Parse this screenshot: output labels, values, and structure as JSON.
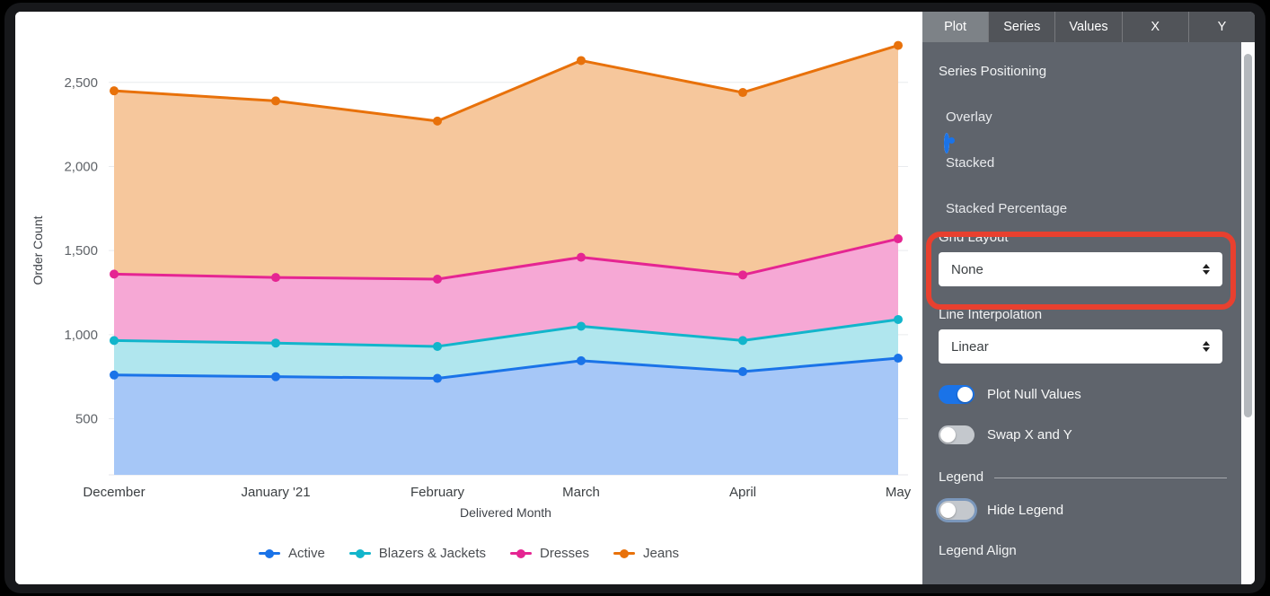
{
  "panel": {
    "tabs": [
      {
        "label": "Plot",
        "active": true
      },
      {
        "label": "Series",
        "active": false
      },
      {
        "label": "Values",
        "active": false
      },
      {
        "label": "X",
        "active": false
      },
      {
        "label": "Y",
        "active": false
      }
    ],
    "series_positioning": {
      "label": "Series Positioning",
      "options": [
        {
          "label": "Overlay",
          "selected": false
        },
        {
          "label": "Stacked",
          "selected": true
        },
        {
          "label": "Stacked Percentage",
          "selected": false
        }
      ]
    },
    "grid_layout": {
      "label": "Grid Layout",
      "value": "None"
    },
    "line_interpolation": {
      "label": "Line Interpolation",
      "value": "Linear"
    },
    "toggles": [
      {
        "label": "Plot Null Values",
        "on": true
      },
      {
        "label": "Swap X and Y",
        "on": false
      }
    ],
    "legend_section": {
      "header": "Legend",
      "hide_legend": {
        "label": "Hide Legend",
        "on": false
      },
      "legend_align_label": "Legend Align"
    }
  },
  "annotation": {
    "type": "highlight-box",
    "target": "Grid Layout",
    "color": "#e8402f"
  },
  "colors": {
    "accent_blue": "#1a73e8",
    "panel_background": "#5f646c",
    "annotation_red": "#e8402f"
  },
  "chart_data": {
    "type": "area",
    "stacked": true,
    "title": "",
    "xlabel": "Delivered Month",
    "ylabel": "Order Count",
    "categories": [
      "December",
      "January '21",
      "February",
      "March",
      "April",
      "May"
    ],
    "y_ticks": [
      500,
      1000,
      1500,
      2000,
      2500
    ],
    "ylim": [
      150,
      2800
    ],
    "grid": true,
    "legend_position": "bottom",
    "series": [
      {
        "name": "Active",
        "color": "#1a73e8",
        "fill": "#a6c7f7",
        "values": [
          760,
          750,
          740,
          845,
          780,
          860
        ]
      },
      {
        "name": "Blazers & Jackets",
        "color": "#12b5cb",
        "fill": "#b0e6ee",
        "values": [
          205,
          200,
          190,
          205,
          185,
          230
        ]
      },
      {
        "name": "Dresses",
        "color": "#e52592",
        "fill": "#f6a8d5",
        "values": [
          395,
          390,
          400,
          410,
          390,
          480
        ]
      },
      {
        "name": "Jeans",
        "color": "#e8710a",
        "fill": "#f6c79c",
        "values": [
          1090,
          1050,
          940,
          1170,
          1085,
          1150
        ]
      }
    ],
    "stacked_totals": [
      2450,
      2390,
      2270,
      2630,
      2440,
      2720
    ]
  }
}
